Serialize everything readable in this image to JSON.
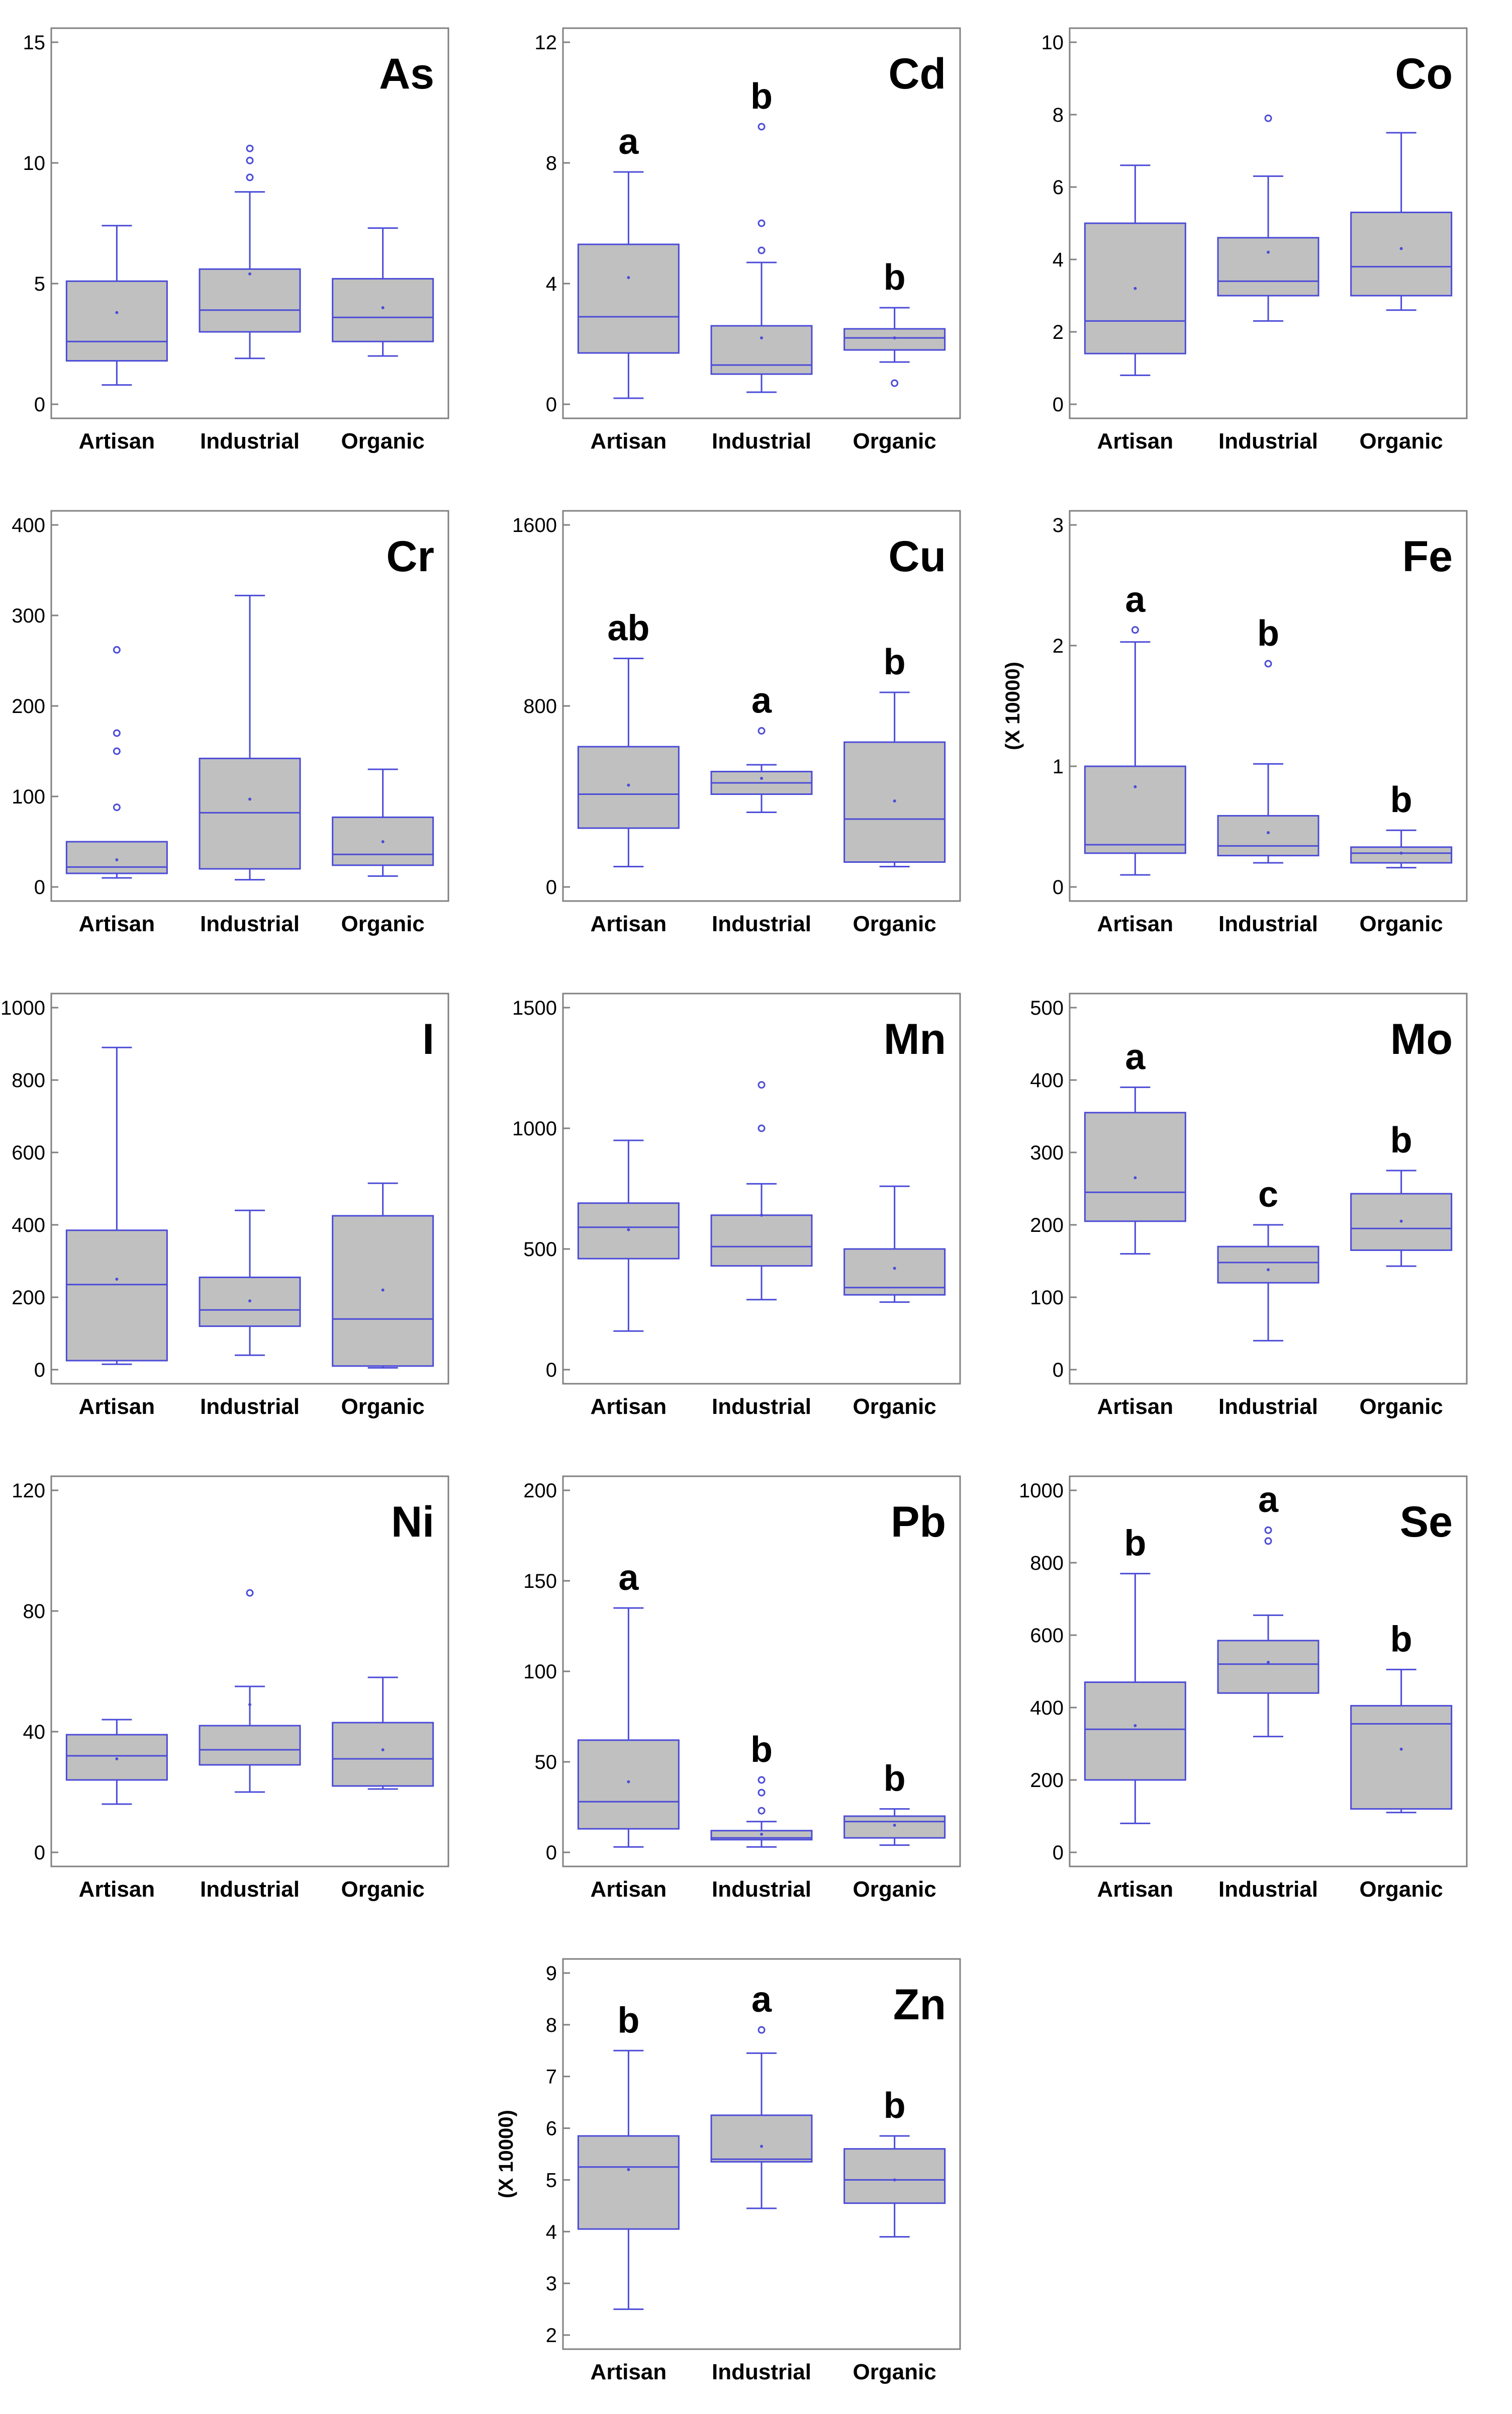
{
  "chart_data": [
    {
      "type": "box",
      "title": "As",
      "categories": [
        "Artisan",
        "Industrial",
        "Organic"
      ],
      "ylim": [
        0,
        15
      ],
      "yticks": [
        "0",
        "5",
        "10",
        "15"
      ],
      "ylabel": "",
      "letters": [
        "",
        "",
        ""
      ],
      "boxes": [
        {
          "whisker_low": 0.8,
          "q1": 1.8,
          "median": 2.6,
          "q3": 5.1,
          "whisker_high": 7.4,
          "mean": 3.8,
          "outliers": []
        },
        {
          "whisker_low": 1.9,
          "q1": 3.0,
          "median": 3.9,
          "q3": 5.6,
          "whisker_high": 8.8,
          "mean": 5.4,
          "outliers": [
            9.4,
            10.1,
            10.6
          ]
        },
        {
          "whisker_low": 2.0,
          "q1": 2.6,
          "median": 3.6,
          "q3": 5.2,
          "whisker_high": 7.3,
          "mean": 4.0,
          "outliers": []
        }
      ]
    },
    {
      "type": "box",
      "title": "Cd",
      "categories": [
        "Artisan",
        "Industrial",
        "Organic"
      ],
      "ylim": [
        0,
        12
      ],
      "yticks": [
        "0",
        "4",
        "8",
        "12"
      ],
      "ylabel": "",
      "letters": [
        "a",
        "b",
        "b"
      ],
      "boxes": [
        {
          "whisker_low": 0.2,
          "q1": 1.7,
          "median": 2.9,
          "q3": 5.3,
          "whisker_high": 7.7,
          "mean": 4.2,
          "outliers": []
        },
        {
          "whisker_low": 0.4,
          "q1": 1.0,
          "median": 1.3,
          "q3": 2.6,
          "whisker_high": 4.7,
          "mean": 2.2,
          "outliers": [
            5.1,
            6.0,
            9.2
          ]
        },
        {
          "whisker_low": 1.4,
          "q1": 1.8,
          "median": 2.2,
          "q3": 2.5,
          "whisker_high": 3.2,
          "mean": 2.2,
          "outliers": [
            0.7
          ]
        }
      ]
    },
    {
      "type": "box",
      "title": "Co",
      "categories": [
        "Artisan",
        "Industrial",
        "Organic"
      ],
      "ylim": [
        0,
        10
      ],
      "yticks": [
        "0",
        "2",
        "4",
        "6",
        "8",
        "10"
      ],
      "ylabel": "",
      "letters": [
        "",
        "",
        ""
      ],
      "boxes": [
        {
          "whisker_low": 0.8,
          "q1": 1.4,
          "median": 2.3,
          "q3": 5.0,
          "whisker_high": 6.6,
          "mean": 3.2,
          "outliers": []
        },
        {
          "whisker_low": 2.3,
          "q1": 3.0,
          "median": 3.4,
          "q3": 4.6,
          "whisker_high": 6.3,
          "mean": 4.2,
          "outliers": [
            7.9
          ]
        },
        {
          "whisker_low": 2.6,
          "q1": 3.0,
          "median": 3.8,
          "q3": 5.3,
          "whisker_high": 7.5,
          "mean": 4.3,
          "outliers": []
        }
      ]
    },
    {
      "type": "box",
      "title": "Cr",
      "categories": [
        "Artisan",
        "Industrial",
        "Organic"
      ],
      "ylim": [
        0,
        400
      ],
      "yticks": [
        "0",
        "100",
        "200",
        "300",
        "400"
      ],
      "ylabel": "",
      "letters": [
        "",
        "",
        ""
      ],
      "boxes": [
        {
          "whisker_low": 10,
          "q1": 15,
          "median": 22,
          "q3": 50,
          "whisker_high": 50,
          "mean": 30,
          "outliers": [
            88,
            150,
            170,
            262
          ]
        },
        {
          "whisker_low": 8,
          "q1": 20,
          "median": 82,
          "q3": 142,
          "whisker_high": 322,
          "mean": 97,
          "outliers": []
        },
        {
          "whisker_low": 12,
          "q1": 24,
          "median": 36,
          "q3": 77,
          "whisker_high": 130,
          "mean": 50,
          "outliers": []
        }
      ]
    },
    {
      "type": "box",
      "title": "Cu",
      "categories": [
        "Artisan",
        "Industrial",
        "Organic"
      ],
      "ylim": [
        0,
        1600
      ],
      "yticks": [
        "0",
        "800",
        "1600"
      ],
      "ylabel": "",
      "letters": [
        "ab",
        "a",
        "b"
      ],
      "boxes": [
        {
          "whisker_low": 90,
          "q1": 260,
          "median": 410,
          "q3": 620,
          "whisker_high": 1010,
          "mean": 450,
          "outliers": []
        },
        {
          "whisker_low": 330,
          "q1": 410,
          "median": 460,
          "q3": 510,
          "whisker_high": 540,
          "mean": 480,
          "outliers": [
            690
          ]
        },
        {
          "whisker_low": 90,
          "q1": 110,
          "median": 300,
          "q3": 640,
          "whisker_high": 860,
          "mean": 380,
          "outliers": []
        }
      ]
    },
    {
      "type": "box",
      "title": "Fe",
      "categories": [
        "Artisan",
        "Industrial",
        "Organic"
      ],
      "ylim": [
        0,
        3
      ],
      "yticks": [
        "0",
        "1",
        "2",
        "3"
      ],
      "ylabel": "(X 10000)",
      "letters": [
        "a",
        "b",
        "b"
      ],
      "boxes": [
        {
          "whisker_low": 0.1,
          "q1": 0.28,
          "median": 0.35,
          "q3": 1.0,
          "whisker_high": 2.03,
          "mean": 0.83,
          "outliers": [
            2.13
          ]
        },
        {
          "whisker_low": 0.2,
          "q1": 0.26,
          "median": 0.34,
          "q3": 0.59,
          "whisker_high": 1.02,
          "mean": 0.45,
          "outliers": [
            1.85
          ]
        },
        {
          "whisker_low": 0.16,
          "q1": 0.2,
          "median": 0.28,
          "q3": 0.33,
          "whisker_high": 0.47,
          "mean": 0.28,
          "outliers": []
        }
      ]
    },
    {
      "type": "box",
      "title": "I",
      "categories": [
        "Artisan",
        "Industrial",
        "Organic"
      ],
      "ylim": [
        0,
        1000
      ],
      "yticks": [
        "0",
        "200",
        "400",
        "600",
        "800",
        "1000"
      ],
      "ylabel": "",
      "letters": [
        "",
        "",
        ""
      ],
      "boxes": [
        {
          "whisker_low": 15,
          "q1": 25,
          "median": 235,
          "q3": 385,
          "whisker_high": 890,
          "mean": 250,
          "outliers": []
        },
        {
          "whisker_low": 40,
          "q1": 120,
          "median": 165,
          "q3": 255,
          "whisker_high": 440,
          "mean": 190,
          "outliers": []
        },
        {
          "whisker_low": 5,
          "q1": 10,
          "median": 140,
          "q3": 425,
          "whisker_high": 515,
          "mean": 220,
          "outliers": []
        }
      ]
    },
    {
      "type": "box",
      "title": "Mn",
      "categories": [
        "Artisan",
        "Industrial",
        "Organic"
      ],
      "ylim": [
        0,
        1500
      ],
      "yticks": [
        "0",
        "500",
        "1000",
        "1500"
      ],
      "ylabel": "",
      "letters": [
        "",
        "",
        ""
      ],
      "boxes": [
        {
          "whisker_low": 160,
          "q1": 460,
          "median": 590,
          "q3": 690,
          "whisker_high": 950,
          "mean": 580,
          "outliers": []
        },
        {
          "whisker_low": 290,
          "q1": 430,
          "median": 510,
          "q3": 640,
          "whisker_high": 770,
          "mean": 640,
          "outliers": [
            1000,
            1180
          ]
        },
        {
          "whisker_low": 280,
          "q1": 310,
          "median": 340,
          "q3": 500,
          "whisker_high": 760,
          "mean": 420,
          "outliers": []
        }
      ]
    },
    {
      "type": "box",
      "title": "Mo",
      "categories": [
        "Artisan",
        "Industrial",
        "Organic"
      ],
      "ylim": [
        0,
        500
      ],
      "yticks": [
        "0",
        "100",
        "200",
        "300",
        "400",
        "500"
      ],
      "ylabel": "",
      "letters": [
        "a",
        "c",
        "b"
      ],
      "boxes": [
        {
          "whisker_low": 160,
          "q1": 205,
          "median": 245,
          "q3": 355,
          "whisker_high": 390,
          "mean": 265,
          "outliers": []
        },
        {
          "whisker_low": 40,
          "q1": 120,
          "median": 148,
          "q3": 170,
          "whisker_high": 200,
          "mean": 138,
          "outliers": []
        },
        {
          "whisker_low": 143,
          "q1": 165,
          "median": 195,
          "q3": 243,
          "whisker_high": 275,
          "mean": 205,
          "outliers": []
        }
      ]
    },
    {
      "type": "box",
      "title": "Ni",
      "categories": [
        "Artisan",
        "Industrial",
        "Organic"
      ],
      "ylim": [
        0,
        120
      ],
      "yticks": [
        "0",
        "40",
        "80",
        "120"
      ],
      "ylabel": "",
      "letters": [
        "",
        "",
        ""
      ],
      "boxes": [
        {
          "whisker_low": 16,
          "q1": 24,
          "median": 32,
          "q3": 39,
          "whisker_high": 44,
          "mean": 31,
          "outliers": []
        },
        {
          "whisker_low": 20,
          "q1": 29,
          "median": 34,
          "q3": 42,
          "whisker_high": 55,
          "mean": 49,
          "outliers": [
            86
          ]
        },
        {
          "whisker_low": 21,
          "q1": 22,
          "median": 31,
          "q3": 43,
          "whisker_high": 58,
          "mean": 34,
          "outliers": []
        }
      ]
    },
    {
      "type": "box",
      "title": "Pb",
      "categories": [
        "Artisan",
        "Industrial",
        "Organic"
      ],
      "ylim": [
        0,
        200
      ],
      "yticks": [
        "0",
        "50",
        "100",
        "150",
        "200"
      ],
      "ylabel": "",
      "letters": [
        "a",
        "b",
        "b"
      ],
      "boxes": [
        {
          "whisker_low": 3,
          "q1": 13,
          "median": 28,
          "q3": 62,
          "whisker_high": 135,
          "mean": 39,
          "outliers": []
        },
        {
          "whisker_low": 3,
          "q1": 7,
          "median": 8,
          "q3": 12,
          "whisker_high": 17,
          "mean": 10,
          "outliers": [
            23,
            33,
            40
          ]
        },
        {
          "whisker_low": 4,
          "q1": 8,
          "median": 17,
          "q3": 20,
          "whisker_high": 24,
          "mean": 15,
          "outliers": []
        }
      ]
    },
    {
      "type": "box",
      "title": "Se",
      "categories": [
        "Artisan",
        "Industrial",
        "Organic"
      ],
      "ylim": [
        0,
        1000
      ],
      "yticks": [
        "0",
        "200",
        "400",
        "600",
        "800",
        "1000"
      ],
      "ylabel": "",
      "letters": [
        "b",
        "a",
        "b"
      ],
      "boxes": [
        {
          "whisker_low": 80,
          "q1": 200,
          "median": 340,
          "q3": 470,
          "whisker_high": 770,
          "mean": 350,
          "outliers": []
        },
        {
          "whisker_low": 320,
          "q1": 440,
          "median": 520,
          "q3": 585,
          "whisker_high": 655,
          "mean": 525,
          "outliers": [
            860,
            890
          ]
        },
        {
          "whisker_low": 110,
          "q1": 120,
          "median": 355,
          "q3": 405,
          "whisker_high": 505,
          "mean": 285,
          "outliers": []
        }
      ]
    },
    {
      "type": "box",
      "title": "Zn",
      "categories": [
        "Artisan",
        "Industrial",
        "Organic"
      ],
      "ylim": [
        2,
        9
      ],
      "yticks": [
        "2",
        "3",
        "4",
        "5",
        "6",
        "7",
        "8",
        "9"
      ],
      "ylabel": "(X 10000)",
      "letters": [
        "b",
        "a",
        "b"
      ],
      "boxes": [
        {
          "whisker_low": 2.5,
          "q1": 4.05,
          "median": 5.25,
          "q3": 5.85,
          "whisker_high": 7.5,
          "mean": 5.2,
          "outliers": []
        },
        {
          "whisker_low": 4.45,
          "q1": 5.35,
          "median": 5.4,
          "q3": 6.25,
          "whisker_high": 7.45,
          "mean": 5.65,
          "outliers": [
            7.9
          ]
        },
        {
          "whisker_low": 3.9,
          "q1": 4.55,
          "median": 5.0,
          "q3": 5.6,
          "whisker_high": 5.85,
          "mean": 5.0,
          "outliers": []
        }
      ]
    }
  ],
  "colors": {
    "box_fill": "#c0c0c0",
    "box_stroke": "#4b4bd8",
    "axis": "#808080",
    "text": "#000000"
  }
}
